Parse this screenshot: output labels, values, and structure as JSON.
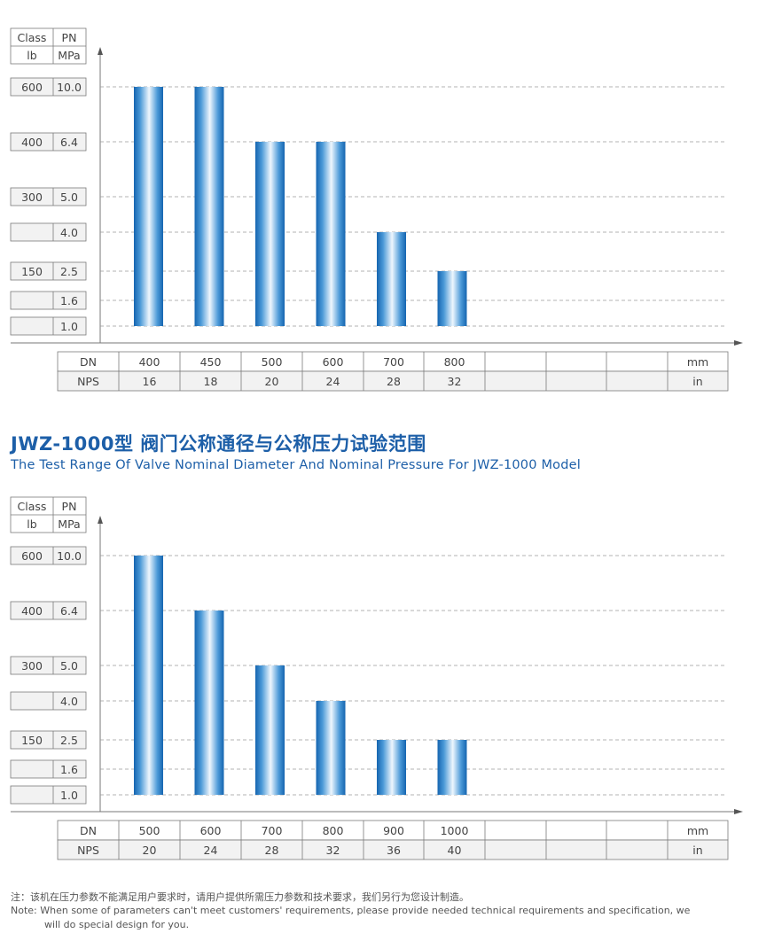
{
  "chart_data": [
    {
      "type": "bar",
      "header": {
        "class": "Class",
        "pn": "PN",
        "class_unit": "lb",
        "pn_unit": "MPa"
      },
      "y_levels": [
        {
          "class": "600",
          "pn": "10.0",
          "value": 10.0
        },
        {
          "class": "400",
          "pn": "6.4",
          "value": 6.4
        },
        {
          "class": "300",
          "pn": "5.0",
          "value": 5.0
        },
        {
          "class": "",
          "pn": "4.0",
          "value": 4.0
        },
        {
          "class": "150",
          "pn": "2.5",
          "value": 2.5
        },
        {
          "class": "",
          "pn": "1.6",
          "value": 1.6
        },
        {
          "class": "",
          "pn": "1.0",
          "value": 1.0
        }
      ],
      "row_labels": {
        "dn": "DN",
        "nps": "NPS",
        "dn_unit": "mm",
        "nps_unit": "in"
      },
      "categories": [
        "400",
        "450",
        "500",
        "600",
        "700",
        "800"
      ],
      "nps": [
        "16",
        "18",
        "20",
        "24",
        "28",
        "32"
      ],
      "values": [
        10.0,
        10.0,
        6.4,
        6.4,
        4.0,
        2.5
      ],
      "base": 1.0
    },
    {
      "type": "bar",
      "header": {
        "class": "Class",
        "pn": "PN",
        "class_unit": "lb",
        "pn_unit": "MPa"
      },
      "y_levels": [
        {
          "class": "600",
          "pn": "10.0",
          "value": 10.0
        },
        {
          "class": "400",
          "pn": "6.4",
          "value": 6.4
        },
        {
          "class": "300",
          "pn": "5.0",
          "value": 5.0
        },
        {
          "class": "",
          "pn": "4.0",
          "value": 4.0
        },
        {
          "class": "150",
          "pn": "2.5",
          "value": 2.5
        },
        {
          "class": "",
          "pn": "1.6",
          "value": 1.6
        },
        {
          "class": "",
          "pn": "1.0",
          "value": 1.0
        }
      ],
      "row_labels": {
        "dn": "DN",
        "nps": "NPS",
        "dn_unit": "mm",
        "nps_unit": "in"
      },
      "categories": [
        "500",
        "600",
        "700",
        "800",
        "900",
        "1000"
      ],
      "nps": [
        "20",
        "24",
        "28",
        "32",
        "36",
        "40"
      ],
      "values": [
        10.0,
        6.4,
        5.0,
        4.0,
        2.5,
        2.5
      ],
      "base": 1.0
    }
  ],
  "section2": {
    "title_cn": "JWZ-1000型 阀门公称通径与公称压力试验范围",
    "title_en": "The Test Range Of Valve Nominal Diameter And Nominal Pressure For JWZ-1000 Model"
  },
  "notes": {
    "cn": "注：该机在压力参数不能满足用户要求时，请用户提供所需压力参数和技术要求，我们另行为您设计制造。",
    "en_line1": "Note: When some of parameters can't meet customers' requirements, please provide needed technical requirements and specification, we",
    "en_line2": "will do special design for you."
  },
  "colors": {
    "bar_edge": "#1565b0",
    "bar_light": "#eef6fd",
    "title": "#1d5fa8",
    "table_fill": "#f2f2f2",
    "table_border": "#7a7a7a",
    "grid": "#9a9a9a"
  }
}
